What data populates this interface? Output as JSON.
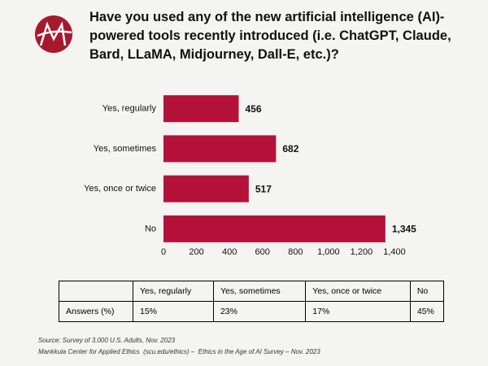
{
  "chart_data": {
    "type": "hbar",
    "title": "Have you used any of the new artificial intelligence (AI)-powered tools recently introduced (i.e. ChatGPT, Claude, Bard, LLaMA, Midjourney, Dall-E, etc.)?",
    "categories": [
      "Yes, regularly",
      "Yes, sometimes",
      "Yes, once or twice",
      "No"
    ],
    "values": [
      456,
      682,
      517,
      1345
    ],
    "value_labels": [
      "456",
      "682",
      "517",
      "1,345"
    ],
    "color": "#b5123a",
    "xlim": [
      0,
      1400
    ],
    "xticks": [
      0,
      200,
      400,
      600,
      800,
      {
        "value": 1000,
        "label": "1,000"
      },
      {
        "value": 1200,
        "label": "1,200"
      },
      {
        "value": 1400,
        "label": "1,400"
      }
    ]
  },
  "table": {
    "columns": [
      "Yes, regularly",
      "Yes, sometimes",
      "Yes, once or twice",
      "No"
    ],
    "rows": [
      [
        "Answers (%)",
        "15%",
        "23%",
        "17%",
        "45%"
      ]
    ]
  },
  "footer": {
    "source": "Source: Survey of 3,000 U.S. Adults, Nov. 2023",
    "credit": "Mankkula Center for Applied Ethics  (scu.edu/ethics) –  Ethics in the Age of AI Survey – Nov. 2023"
  }
}
